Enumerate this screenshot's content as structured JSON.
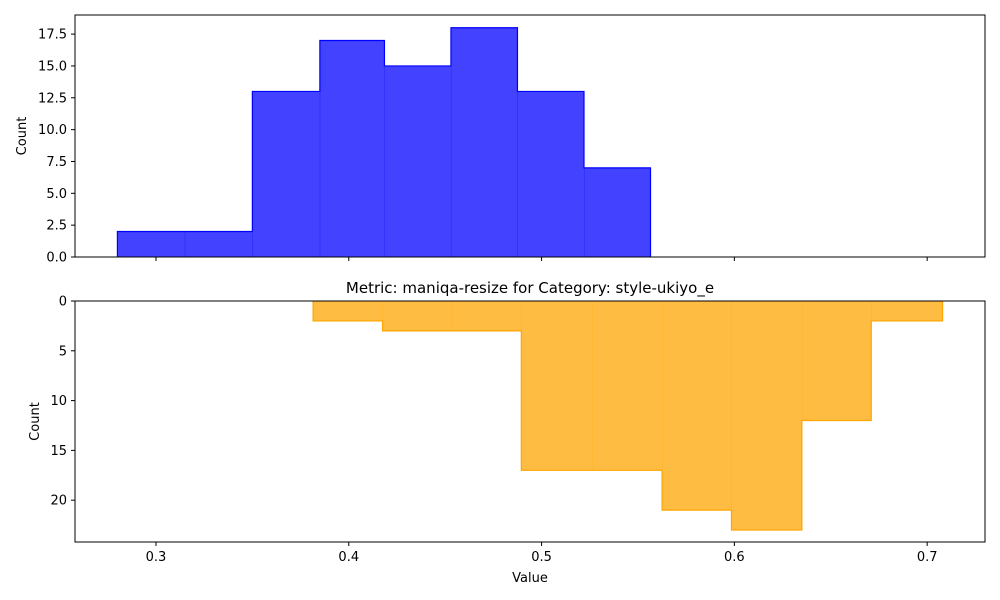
{
  "chart_data": [
    {
      "type": "histogram",
      "title": "",
      "xlabel": "",
      "ylabel": "Count",
      "xlim": [
        0.258,
        0.73
      ],
      "ylim": [
        0,
        19.0
      ],
      "y_inverted": false,
      "xticks": [
        0.3,
        0.4,
        0.5,
        0.6,
        0.7
      ],
      "xtick_labels_shown": false,
      "yticks": [
        0,
        2.5,
        5,
        7.5,
        10,
        12.5,
        15,
        17.5
      ],
      "ytick_labels": [
        "0.0",
        "2.5",
        "5.0",
        "7.5",
        "10.0",
        "12.5",
        "15.0",
        "17.5"
      ],
      "bin_edges": [
        0.28,
        0.315,
        0.35,
        0.385,
        0.4185,
        0.453,
        0.4875,
        0.522,
        0.5565
      ],
      "counts": [
        2,
        2,
        13,
        17,
        15,
        18,
        13,
        7
      ],
      "fill_color": "#0000ff",
      "fill_opacity": 0.74,
      "edge_color": "#0000ff",
      "grid": false
    },
    {
      "type": "histogram",
      "title": "Metric: maniqa-resize for Category: style-ukiyo_e",
      "xlabel": "Value",
      "ylabel": "Count",
      "xlim": [
        0.258,
        0.73
      ],
      "ylim": [
        0,
        24.2
      ],
      "y_inverted": true,
      "xticks": [
        0.3,
        0.4,
        0.5,
        0.6,
        0.7
      ],
      "xtick_labels": [
        "0.3",
        "0.4",
        "0.5",
        "0.6",
        "0.7"
      ],
      "xtick_labels_shown": true,
      "yticks": [
        0,
        5,
        10,
        15,
        20
      ],
      "ytick_labels": [
        "0",
        "5",
        "10",
        "15",
        "20"
      ],
      "bin_edges": [
        0.3815,
        0.4175,
        0.4535,
        0.4895,
        0.5265,
        0.5625,
        0.5985,
        0.635,
        0.671,
        0.708
      ],
      "counts": [
        2,
        3,
        3,
        17,
        17,
        21,
        23,
        12,
        2
      ],
      "fill_color": "#ffa500",
      "fill_opacity": 0.74,
      "edge_color": "#ffa500",
      "grid": false
    }
  ]
}
